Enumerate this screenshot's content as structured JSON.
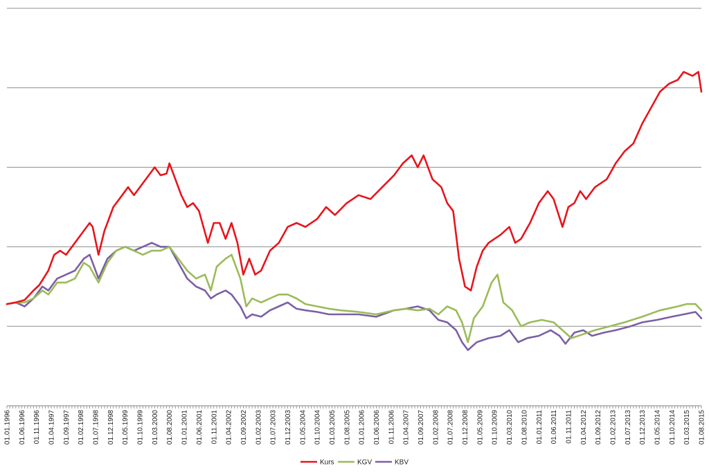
{
  "chart_data": {
    "type": "line",
    "x_tick_labels": [
      "01.01.1996",
      "01.06.1996",
      "01.11.1996",
      "01.04.1997",
      "01.09.1997",
      "01.02.1998",
      "01.07.1998",
      "01.12.1998",
      "01.05.1999",
      "01.10.1999",
      "01.03.2000",
      "01.08.2000",
      "01.01.2001",
      "01.06.2001",
      "01.11.2001",
      "01.04.2002",
      "01.09.2002",
      "01.02.2003",
      "01.07.2003",
      "01.12.2003",
      "01.05.2004",
      "01.10.2004",
      "01.03.2005",
      "01.08.2005",
      "01.01.2006",
      "01.06.2006",
      "01.11.2006",
      "01.04.2007",
      "01.09.2007",
      "01.02.2008",
      "01.07.2008",
      "01.12.2008",
      "01.05.2009",
      "01.10.2009",
      "01.03.2010",
      "01.08.2010",
      "01.01.2011",
      "01.06.2011",
      "01.11.2011",
      "01.04.2012",
      "01.09.2012",
      "01.02.2013",
      "01.07.2013",
      "01.12.2013",
      "01.05.2014",
      "01.10.2014",
      "01.03.2015",
      "01.08.2015"
    ],
    "x_range": [
      "1996-01",
      "2015-08"
    ],
    "y_range": [
      -1,
      4
    ],
    "gridlines": [
      -1,
      0,
      1,
      2,
      3,
      4
    ],
    "y_tick_labels_shown": false,
    "grid": true,
    "legend_position": "bottom",
    "title": "",
    "xlabel": "",
    "ylabel": "",
    "series": [
      {
        "name": "Kurs",
        "color": "#e8141b",
        "points": [
          [
            "1996-01",
            0.28
          ],
          [
            "1996-04",
            0.3
          ],
          [
            "1996-07",
            0.33
          ],
          [
            "1996-10",
            0.45
          ],
          [
            "1996-12",
            0.52
          ],
          [
            "1997-03",
            0.7
          ],
          [
            "1997-05",
            0.9
          ],
          [
            "1997-07",
            0.95
          ],
          [
            "1997-09",
            0.9
          ],
          [
            "1997-12",
            1.05
          ],
          [
            "1998-03",
            1.2
          ],
          [
            "1998-05",
            1.3
          ],
          [
            "1998-06",
            1.25
          ],
          [
            "1998-08",
            0.9
          ],
          [
            "1998-10",
            1.2
          ],
          [
            "1999-01",
            1.5
          ],
          [
            "1999-04",
            1.65
          ],
          [
            "1999-06",
            1.75
          ],
          [
            "1999-08",
            1.65
          ],
          [
            "1999-11",
            1.8
          ],
          [
            "2000-01",
            1.9
          ],
          [
            "2000-03",
            2.0
          ],
          [
            "2000-05",
            1.9
          ],
          [
            "2000-07",
            1.92
          ],
          [
            "2000-08",
            2.05
          ],
          [
            "2000-10",
            1.85
          ],
          [
            "2000-12",
            1.65
          ],
          [
            "2001-02",
            1.5
          ],
          [
            "2001-04",
            1.55
          ],
          [
            "2001-06",
            1.45
          ],
          [
            "2001-09",
            1.05
          ],
          [
            "2001-11",
            1.3
          ],
          [
            "2002-01",
            1.3
          ],
          [
            "2002-03",
            1.1
          ],
          [
            "2002-05",
            1.3
          ],
          [
            "2002-07",
            1.05
          ],
          [
            "2002-09",
            0.65
          ],
          [
            "2002-11",
            0.85
          ],
          [
            "2003-01",
            0.65
          ],
          [
            "2003-03",
            0.7
          ],
          [
            "2003-06",
            0.95
          ],
          [
            "2003-09",
            1.05
          ],
          [
            "2003-12",
            1.25
          ],
          [
            "2004-03",
            1.3
          ],
          [
            "2004-06",
            1.25
          ],
          [
            "2004-10",
            1.35
          ],
          [
            "2005-01",
            1.5
          ],
          [
            "2005-04",
            1.4
          ],
          [
            "2005-08",
            1.55
          ],
          [
            "2005-12",
            1.65
          ],
          [
            "2006-04",
            1.6
          ],
          [
            "2006-08",
            1.75
          ],
          [
            "2006-12",
            1.9
          ],
          [
            "2007-03",
            2.05
          ],
          [
            "2007-06",
            2.15
          ],
          [
            "2007-08",
            2.0
          ],
          [
            "2007-10",
            2.15
          ],
          [
            "2008-01",
            1.85
          ],
          [
            "2008-04",
            1.75
          ],
          [
            "2008-06",
            1.55
          ],
          [
            "2008-08",
            1.45
          ],
          [
            "2008-10",
            0.85
          ],
          [
            "2008-12",
            0.5
          ],
          [
            "2009-02",
            0.45
          ],
          [
            "2009-04",
            0.75
          ],
          [
            "2009-06",
            0.95
          ],
          [
            "2009-08",
            1.05
          ],
          [
            "2009-12",
            1.15
          ],
          [
            "2010-03",
            1.25
          ],
          [
            "2010-05",
            1.05
          ],
          [
            "2010-07",
            1.1
          ],
          [
            "2010-10",
            1.3
          ],
          [
            "2011-01",
            1.55
          ],
          [
            "2011-04",
            1.7
          ],
          [
            "2011-06",
            1.6
          ],
          [
            "2011-09",
            1.25
          ],
          [
            "2011-11",
            1.5
          ],
          [
            "2012-01",
            1.55
          ],
          [
            "2012-03",
            1.7
          ],
          [
            "2012-05",
            1.6
          ],
          [
            "2012-08",
            1.75
          ],
          [
            "2012-12",
            1.85
          ],
          [
            "2013-03",
            2.05
          ],
          [
            "2013-06",
            2.2
          ],
          [
            "2013-09",
            2.3
          ],
          [
            "2013-12",
            2.55
          ],
          [
            "2014-03",
            2.75
          ],
          [
            "2014-06",
            2.95
          ],
          [
            "2014-09",
            3.05
          ],
          [
            "2014-12",
            3.1
          ],
          [
            "2015-02",
            3.2
          ],
          [
            "2015-05",
            3.15
          ],
          [
            "2015-07",
            3.2
          ],
          [
            "2015-08",
            2.95
          ]
        ]
      },
      {
        "name": "KGV",
        "color": "#9bbb59",
        "points": [
          [
            "1996-01",
            0.28
          ],
          [
            "1996-04",
            0.3
          ],
          [
            "1996-07",
            0.3
          ],
          [
            "1996-10",
            0.35
          ],
          [
            "1997-01",
            0.45
          ],
          [
            "1997-03",
            0.4
          ],
          [
            "1997-06",
            0.55
          ],
          [
            "1997-09",
            0.55
          ],
          [
            "1997-12",
            0.6
          ],
          [
            "1998-03",
            0.8
          ],
          [
            "1998-05",
            0.75
          ],
          [
            "1998-08",
            0.55
          ],
          [
            "1998-11",
            0.8
          ],
          [
            "1999-02",
            0.95
          ],
          [
            "1999-05",
            1.0
          ],
          [
            "1999-08",
            0.95
          ],
          [
            "1999-11",
            0.9
          ],
          [
            "2000-02",
            0.95
          ],
          [
            "2000-05",
            0.95
          ],
          [
            "2000-08",
            1.0
          ],
          [
            "2000-11",
            0.85
          ],
          [
            "2001-02",
            0.7
          ],
          [
            "2001-05",
            0.6
          ],
          [
            "2001-08",
            0.65
          ],
          [
            "2001-10",
            0.45
          ],
          [
            "2001-12",
            0.75
          ],
          [
            "2002-03",
            0.85
          ],
          [
            "2002-05",
            0.9
          ],
          [
            "2002-08",
            0.6
          ],
          [
            "2002-10",
            0.25
          ],
          [
            "2002-12",
            0.35
          ],
          [
            "2003-03",
            0.3
          ],
          [
            "2003-06",
            0.35
          ],
          [
            "2003-09",
            0.4
          ],
          [
            "2003-12",
            0.4
          ],
          [
            "2004-03",
            0.35
          ],
          [
            "2004-06",
            0.28
          ],
          [
            "2004-10",
            0.25
          ],
          [
            "2005-02",
            0.22
          ],
          [
            "2005-06",
            0.2
          ],
          [
            "2005-12",
            0.18
          ],
          [
            "2006-06",
            0.15
          ],
          [
            "2006-12",
            0.2
          ],
          [
            "2007-04",
            0.22
          ],
          [
            "2007-08",
            0.2
          ],
          [
            "2007-12",
            0.22
          ],
          [
            "2008-03",
            0.15
          ],
          [
            "2008-06",
            0.25
          ],
          [
            "2008-09",
            0.2
          ],
          [
            "2008-11",
            0.05
          ],
          [
            "2009-01",
            -0.2
          ],
          [
            "2009-03",
            0.1
          ],
          [
            "2009-06",
            0.25
          ],
          [
            "2009-09",
            0.55
          ],
          [
            "2009-11",
            0.65
          ],
          [
            "2010-01",
            0.3
          ],
          [
            "2010-04",
            0.2
          ],
          [
            "2010-07",
            0.0
          ],
          [
            "2010-10",
            0.05
          ],
          [
            "2011-02",
            0.08
          ],
          [
            "2011-06",
            0.05
          ],
          [
            "2011-09",
            -0.05
          ],
          [
            "2011-12",
            -0.15
          ],
          [
            "2012-04",
            -0.1
          ],
          [
            "2012-08",
            -0.05
          ],
          [
            "2013-01",
            0.0
          ],
          [
            "2013-06",
            0.05
          ],
          [
            "2013-12",
            0.12
          ],
          [
            "2014-06",
            0.2
          ],
          [
            "2014-12",
            0.25
          ],
          [
            "2015-03",
            0.28
          ],
          [
            "2015-06",
            0.28
          ],
          [
            "2015-08",
            0.2
          ]
        ]
      },
      {
        "name": "KBV",
        "color": "#7b5fa5",
        "points": [
          [
            "1996-01",
            0.28
          ],
          [
            "1996-04",
            0.3
          ],
          [
            "1996-07",
            0.25
          ],
          [
            "1996-10",
            0.35
          ],
          [
            "1997-01",
            0.5
          ],
          [
            "1997-03",
            0.45
          ],
          [
            "1997-06",
            0.6
          ],
          [
            "1997-09",
            0.65
          ],
          [
            "1997-12",
            0.7
          ],
          [
            "1998-03",
            0.85
          ],
          [
            "1998-05",
            0.9
          ],
          [
            "1998-08",
            0.6
          ],
          [
            "1998-11",
            0.85
          ],
          [
            "1999-02",
            0.95
          ],
          [
            "1999-05",
            1.0
          ],
          [
            "1999-08",
            0.95
          ],
          [
            "1999-11",
            1.0
          ],
          [
            "2000-02",
            1.05
          ],
          [
            "2000-05",
            1.0
          ],
          [
            "2000-08",
            1.0
          ],
          [
            "2000-11",
            0.8
          ],
          [
            "2001-02",
            0.6
          ],
          [
            "2001-05",
            0.5
          ],
          [
            "2001-08",
            0.45
          ],
          [
            "2001-10",
            0.35
          ],
          [
            "2001-12",
            0.4
          ],
          [
            "2002-03",
            0.45
          ],
          [
            "2002-05",
            0.4
          ],
          [
            "2002-08",
            0.25
          ],
          [
            "2002-10",
            0.1
          ],
          [
            "2002-12",
            0.15
          ],
          [
            "2003-03",
            0.12
          ],
          [
            "2003-06",
            0.2
          ],
          [
            "2003-09",
            0.25
          ],
          [
            "2003-12",
            0.3
          ],
          [
            "2004-03",
            0.22
          ],
          [
            "2004-06",
            0.2
          ],
          [
            "2004-10",
            0.18
          ],
          [
            "2005-02",
            0.15
          ],
          [
            "2005-06",
            0.15
          ],
          [
            "2005-12",
            0.15
          ],
          [
            "2006-06",
            0.12
          ],
          [
            "2006-12",
            0.2
          ],
          [
            "2007-04",
            0.22
          ],
          [
            "2007-08",
            0.25
          ],
          [
            "2007-12",
            0.2
          ],
          [
            "2008-03",
            0.08
          ],
          [
            "2008-06",
            0.05
          ],
          [
            "2008-09",
            -0.05
          ],
          [
            "2008-11",
            -0.2
          ],
          [
            "2009-01",
            -0.3
          ],
          [
            "2009-04",
            -0.2
          ],
          [
            "2009-08",
            -0.15
          ],
          [
            "2009-12",
            -0.12
          ],
          [
            "2010-03",
            -0.05
          ],
          [
            "2010-06",
            -0.2
          ],
          [
            "2010-09",
            -0.15
          ],
          [
            "2011-01",
            -0.12
          ],
          [
            "2011-05",
            -0.05
          ],
          [
            "2011-08",
            -0.12
          ],
          [
            "2011-10",
            -0.22
          ],
          [
            "2012-01",
            -0.08
          ],
          [
            "2012-04",
            -0.05
          ],
          [
            "2012-07",
            -0.12
          ],
          [
            "2012-11",
            -0.08
          ],
          [
            "2013-03",
            -0.05
          ],
          [
            "2013-08",
            0.0
          ],
          [
            "2013-12",
            0.05
          ],
          [
            "2014-05",
            0.08
          ],
          [
            "2014-10",
            0.12
          ],
          [
            "2015-02",
            0.15
          ],
          [
            "2015-06",
            0.18
          ],
          [
            "2015-08",
            0.1
          ]
        ]
      }
    ]
  }
}
